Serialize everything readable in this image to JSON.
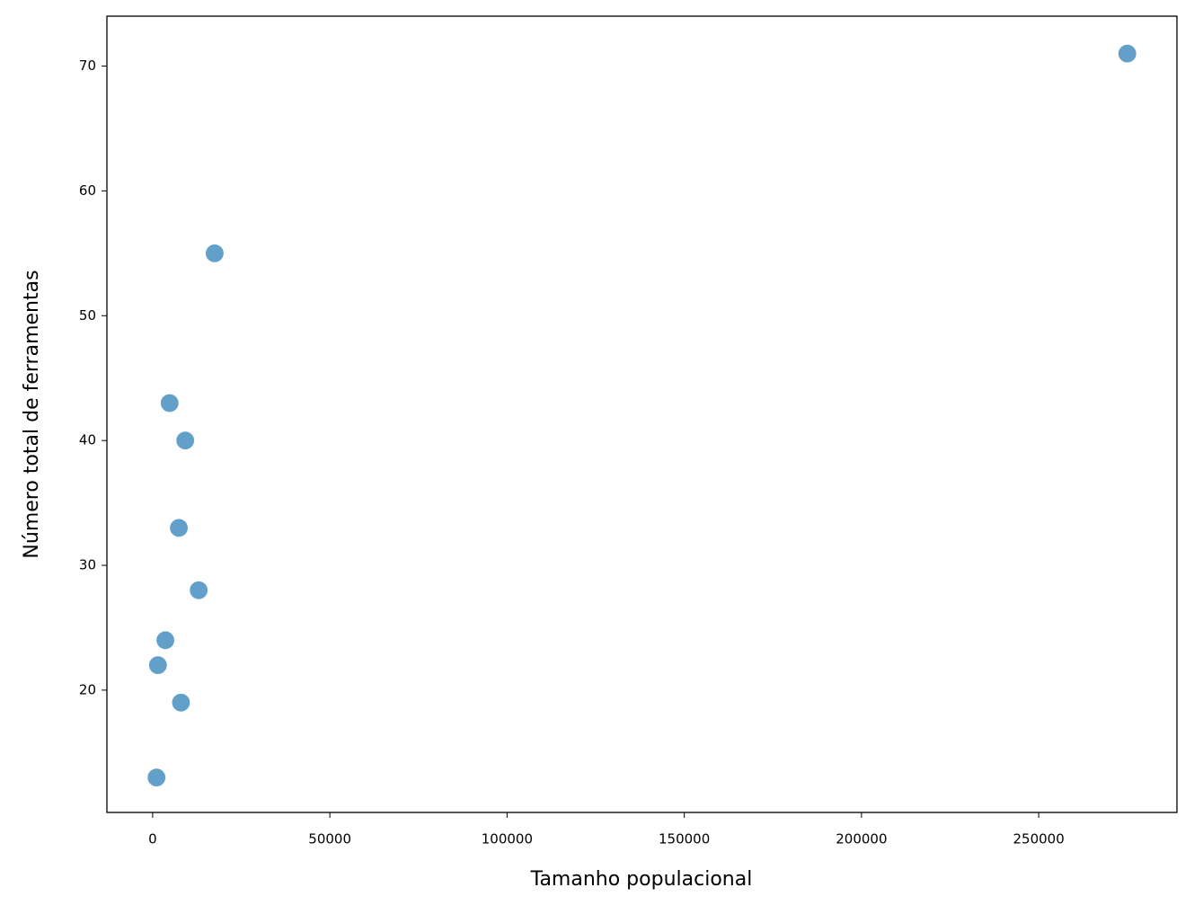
{
  "chart_data": {
    "type": "scatter",
    "xlabel": "Tamanho populacional",
    "ylabel": "Número total de ferramentas",
    "x": [
      1100,
      1500,
      3600,
      4791,
      7400,
      8000,
      9200,
      13000,
      17500,
      275000
    ],
    "values": [
      13,
      22,
      24,
      43,
      33,
      19,
      40,
      28,
      55,
      71
    ],
    "color": "#1f77b4",
    "xlim": [
      -12900,
      289000
    ],
    "ylim": [
      10.2,
      74.0
    ],
    "xticks": [
      0,
      50000,
      100000,
      150000,
      200000,
      250000
    ],
    "yticks": [
      20,
      30,
      40,
      50,
      60,
      70
    ]
  }
}
